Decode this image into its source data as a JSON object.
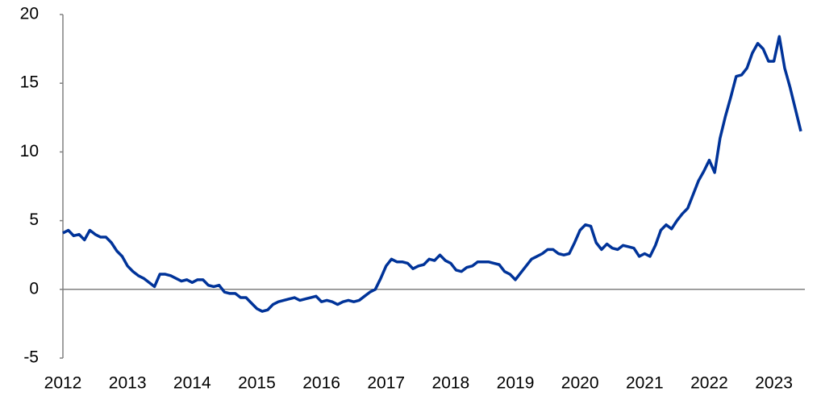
{
  "chart_data": {
    "type": "line",
    "categories": [
      "2012",
      null,
      null,
      null,
      null,
      null,
      null,
      null,
      null,
      null,
      null,
      null,
      "2013",
      null,
      null,
      null,
      null,
      null,
      null,
      null,
      null,
      null,
      null,
      null,
      "2014",
      null,
      null,
      null,
      null,
      null,
      null,
      null,
      null,
      null,
      null,
      null,
      "2015",
      null,
      null,
      null,
      null,
      null,
      null,
      null,
      null,
      null,
      null,
      null,
      "2016",
      null,
      null,
      null,
      null,
      null,
      null,
      null,
      null,
      null,
      null,
      null,
      "2017",
      null,
      null,
      null,
      null,
      null,
      null,
      null,
      null,
      null,
      null,
      null,
      "2018",
      null,
      null,
      null,
      null,
      null,
      null,
      null,
      null,
      null,
      null,
      null,
      "2019",
      null,
      null,
      null,
      null,
      null,
      null,
      null,
      null,
      null,
      null,
      null,
      "2020",
      null,
      null,
      null,
      null,
      null,
      null,
      null,
      null,
      null,
      null,
      null,
      "2021",
      null,
      null,
      null,
      null,
      null,
      null,
      null,
      null,
      null,
      null,
      null,
      "2022",
      null,
      null,
      null,
      null,
      null,
      null,
      null,
      null,
      null,
      null,
      null,
      "2023",
      null,
      null,
      null,
      null,
      null
    ],
    "values": [
      4.1,
      4.3,
      3.9,
      4.0,
      3.6,
      4.3,
      4.0,
      3.8,
      3.8,
      3.4,
      2.8,
      2.4,
      1.7,
      1.3,
      1.0,
      0.8,
      0.5,
      0.2,
      1.1,
      1.1,
      1.0,
      0.8,
      0.6,
      0.7,
      0.5,
      0.7,
      0.7,
      0.3,
      0.2,
      0.3,
      -0.2,
      -0.3,
      -0.3,
      -0.6,
      -0.6,
      -1.0,
      -1.4,
      -1.6,
      -1.5,
      -1.1,
      -0.9,
      -0.8,
      -0.7,
      -0.6,
      -0.8,
      -0.7,
      -0.6,
      -0.5,
      -0.9,
      -0.8,
      -0.9,
      -1.1,
      -0.9,
      -0.8,
      -0.9,
      -0.8,
      -0.5,
      -0.2,
      0.0,
      0.8,
      1.7,
      2.2,
      2.0,
      2.0,
      1.9,
      1.5,
      1.7,
      1.8,
      2.2,
      2.1,
      2.5,
      2.1,
      1.9,
      1.4,
      1.3,
      1.6,
      1.7,
      2.0,
      2.0,
      2.0,
      1.9,
      1.8,
      1.3,
      1.1,
      0.7,
      1.2,
      1.7,
      2.2,
      2.4,
      2.6,
      2.9,
      2.9,
      2.6,
      2.5,
      2.6,
      3.4,
      4.3,
      4.7,
      4.6,
      3.4,
      2.9,
      3.3,
      3.0,
      2.9,
      3.2,
      3.1,
      3.0,
      2.4,
      2.6,
      2.4,
      3.2,
      4.3,
      4.7,
      4.4,
      5.0,
      5.5,
      5.9,
      6.9,
      7.9,
      8.6,
      9.4,
      8.5,
      11.0,
      12.6,
      14.0,
      15.5,
      15.6,
      16.1,
      17.2,
      17.9,
      17.5,
      16.6,
      16.6,
      18.4,
      16.1,
      14.7,
      13.1,
      11.5
    ],
    "color": "#003399",
    "ylim": [
      -5,
      20
    ],
    "yticks": [
      -5,
      0,
      5,
      10,
      15,
      20
    ]
  }
}
